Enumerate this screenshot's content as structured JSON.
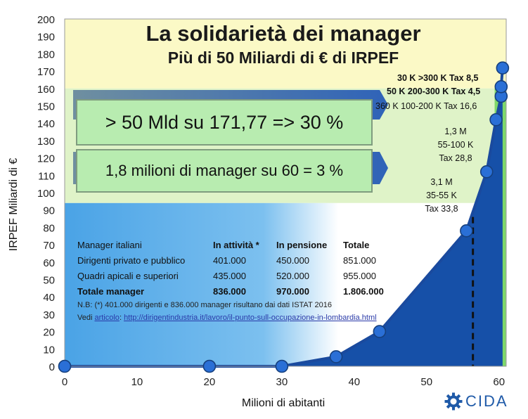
{
  "header": {
    "title": "La solidarietà dei manager",
    "subtitle": "Più di 50 Miliardi di € di IRPEF"
  },
  "callouts": {
    "box1": "> 50 Mld su 171,77 => 30 %",
    "box2": "1,8 milioni di manager su 60 = 3 %"
  },
  "annotations": {
    "a1": "30 K  >300 K Tax 8,5",
    "a2": "50 K 200-300 K Tax 4,5",
    "a3": "360 K 100-200 K Tax 16,6",
    "a4_l1": "1,3 M",
    "a4_l2": "55-100 K",
    "a4_l3": "Tax 28,8",
    "a5_l1": "3,1 M",
    "a5_l2": "35-55 K",
    "a5_l3": "Tax 33,8"
  },
  "table": {
    "headers": [
      "Manager italiani",
      "In attività *",
      "In pensione",
      "Totale"
    ],
    "rows": [
      [
        "Dirigenti privato e pubblico",
        "401.000",
        "450.000",
        "851.000"
      ],
      [
        "Quadri apicali e superiori",
        "435.000",
        "520.000",
        "955.000"
      ],
      [
        "Totale manager",
        "836.000",
        "970.000",
        "1.806.000"
      ]
    ]
  },
  "note": {
    "line1": "N.B: (*) 401.000 dirigenti e  836.000 manager risultano dai dati ISTAT 2016",
    "line2_prefix": "Vedi ",
    "line2_link": "articolo",
    "line2_sep": ": ",
    "line2_url": "http://dirigentindustria.it/lavoro/il-punto-sull-occupazione-in-lombardia.html"
  },
  "logo": {
    "text": "CIDA"
  },
  "colors": {
    "curve_fill": "#1650a8",
    "curve_line": "#1a4a9e",
    "marker": "#2a6fd6",
    "green_band": "#7ed86a",
    "yellow_bg": "#fbf9c6",
    "light_green_bg": "#dff3c8",
    "blue_bg": "#5aaee8"
  },
  "chart_data": {
    "type": "line",
    "title": "La solidarietà dei manager",
    "subtitle": "Più di 50 Miliardi di € di IRPEF",
    "xlabel": "Milioni di abitanti",
    "ylabel": "IRPEF Miliardi di €",
    "xlim": [
      0,
      61
    ],
    "ylim": [
      0,
      200
    ],
    "x_ticks": [
      0,
      10,
      20,
      30,
      40,
      50,
      60
    ],
    "y_ticks": [
      0,
      10,
      20,
      30,
      40,
      50,
      60,
      70,
      80,
      90,
      100,
      110,
      120,
      130,
      140,
      150,
      160,
      170,
      180,
      190,
      200
    ],
    "grid": false,
    "series": [
      {
        "x": [
          0,
          20,
          30,
          37.5,
          43.5,
          55.5,
          58.3,
          59.6,
          60.3,
          60.3,
          60.5
        ],
        "y": [
          0,
          0,
          0,
          5.5,
          20,
          78,
          112,
          142,
          155.5,
          161,
          171.77
        ]
      }
    ],
    "reference_line_x": 56.4
  }
}
